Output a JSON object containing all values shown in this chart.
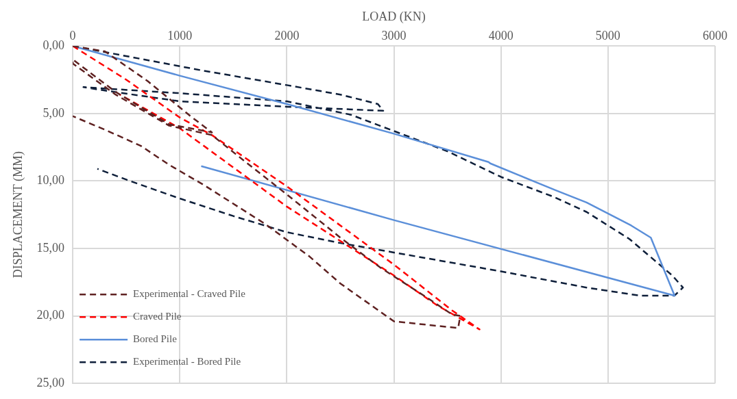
{
  "chart_data": {
    "type": "line",
    "xlabel": "LOAD (KN)",
    "ylabel": "DISPLACEMENT (MM)",
    "xlim": [
      0,
      6000
    ],
    "xticks": [
      0,
      1000,
      2000,
      3000,
      4000,
      5000,
      6000
    ],
    "ylim": [
      25,
      0
    ],
    "yticks": [
      {
        "value": 0,
        "label": "0,00"
      },
      {
        "value": 5,
        "label": "5,00"
      },
      {
        "value": 10,
        "label": "10,00"
      },
      {
        "value": 15,
        "label": "15,00"
      },
      {
        "value": 20,
        "label": "20,00"
      },
      {
        "value": 25,
        "label": "25,00"
      }
    ],
    "grid": true,
    "legend": "bottom left",
    "marker": "none",
    "series": [
      {
        "name": "Experimental - Craved Pile",
        "color": "#5e2121",
        "line_style": "dashed",
        "x": [
          0,
          300,
          700,
          1100,
          1300,
          900,
          400,
          0,
          0,
          400,
          900,
          1300,
          1600,
          2000,
          2500,
          2870,
          3300,
          3545,
          3620,
          3600,
          3000,
          2500,
          2212,
          1800,
          1225,
          900,
          636,
          300,
          0
        ],
        "values": [
          0,
          0.4,
          2.6,
          5.2,
          6.4,
          5.8,
          3.4,
          1.0,
          1.3,
          3.6,
          5.9,
          6.6,
          8.5,
          11.0,
          14.2,
          16.4,
          18.6,
          19.9,
          20.0,
          20.9,
          20.4,
          17.6,
          15.6,
          13.2,
          10.3,
          8.8,
          7.4,
          6.2,
          5.2
        ]
      },
      {
        "name": "Craved Pile",
        "color": "#ff0000",
        "line_style": "dashed",
        "x": [
          0,
          500,
          1000,
          1300,
          2000,
          3000,
          3545,
          3800,
          3400,
          3000,
          2000,
          1000,
          440
        ],
        "values": [
          0,
          2.5,
          5.3,
          6.6,
          10.4,
          16.2,
          19.6,
          21.0,
          19.2,
          17.0,
          11.9,
          6.1,
          3.6
        ]
      },
      {
        "name": "Bored Pile",
        "color": "#5b8fd9",
        "line_style": "solid",
        "x": [
          0,
          1000,
          2000,
          3000,
          3884,
          3900,
          4513,
          4800,
          5216,
          5400,
          5622,
          3000,
          1200
        ],
        "values": [
          0,
          2.2,
          4.3,
          6.5,
          8.6,
          8.7,
          10.7,
          11.6,
          13.3,
          14.2,
          18.5,
          12.9,
          8.9
        ]
      },
      {
        "name": "Experimental - Bored Pile",
        "color": "#0e1f3a",
        "line_style": "dashed",
        "x": [
          0,
          1200,
          2000,
          2500,
          2850,
          2900,
          2000,
          1000,
          300,
          100,
          1000,
          2000,
          2600,
          3000,
          3500,
          4000,
          4500,
          4800,
          5200,
          5600,
          5700,
          5620,
          5300,
          4800,
          4000,
          3000,
          2500,
          2000,
          1500,
          1000,
          500,
          230
        ],
        "values": [
          0,
          1.8,
          2.9,
          3.6,
          4.3,
          4.8,
          4.5,
          4.1,
          3.3,
          3.05,
          3.5,
          4.1,
          5.1,
          6.3,
          7.8,
          9.7,
          11.2,
          12.3,
          14.3,
          17.0,
          17.9,
          18.5,
          18.5,
          17.9,
          16.7,
          15.3,
          14.6,
          13.8,
          12.6,
          11.3,
          9.9,
          9.1
        ]
      }
    ]
  }
}
